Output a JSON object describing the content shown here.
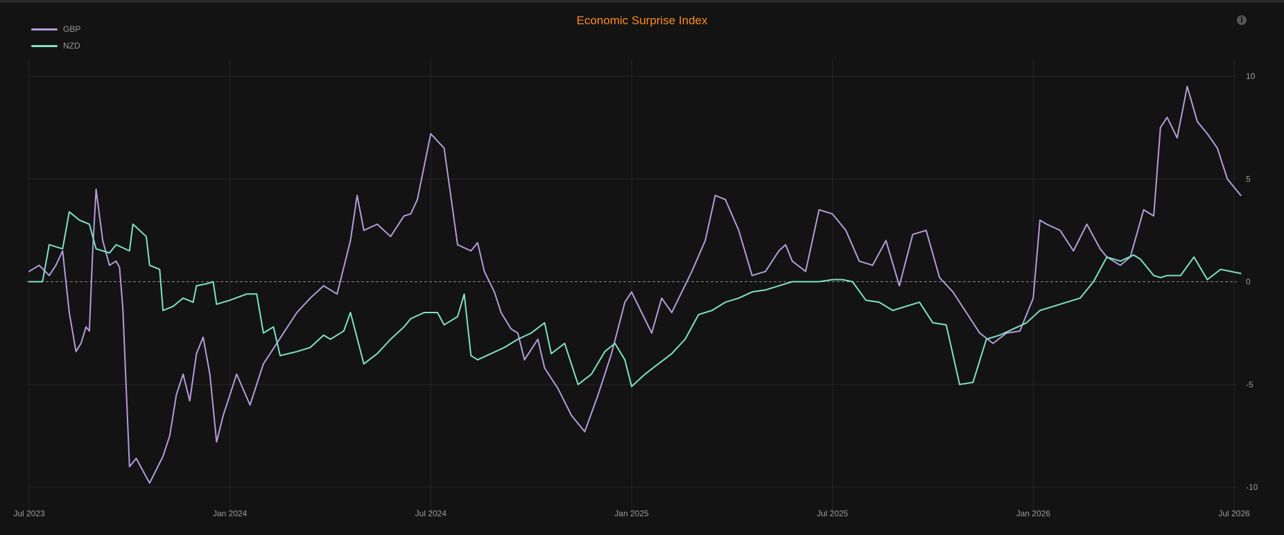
{
  "chart_data": {
    "type": "line",
    "title": "Economic Surprise Index",
    "xlabel": "",
    "ylabel": "",
    "x_ticks": [
      "Jul 2023",
      "Jan 2024",
      "Jul 2024",
      "Jan 2025",
      "Jul 2025",
      "Jan 2026",
      "Jul 2026"
    ],
    "x_tick_months": [
      0,
      6,
      12,
      18,
      24,
      30,
      36
    ],
    "xlim": [
      0,
      36
    ],
    "y_ticks": [
      10,
      5,
      0,
      -5,
      -10
    ],
    "ylim": [
      -10,
      10
    ],
    "y_axis_side": "right",
    "grid": true,
    "zero_line": "dashed",
    "legend_position": "top-left",
    "series": [
      {
        "name": "GBP",
        "color": "#b39ddb",
        "x": [
          0,
          0.3,
          0.6,
          0.8,
          1.0,
          1.2,
          1.4,
          1.55,
          1.7,
          1.8,
          1.9,
          2.0,
          2.2,
          2.4,
          2.6,
          2.7,
          2.8,
          3.0,
          3.1,
          3.2,
          3.4,
          3.6,
          4.0,
          4.2,
          4.4,
          4.6,
          4.8,
          5.0,
          5.2,
          5.4,
          5.6,
          5.8,
          6.0,
          6.2,
          6.6,
          7.0,
          7.2,
          7.6,
          8.0,
          8.4,
          8.8,
          9.2,
          9.6,
          9.8,
          10.0,
          10.4,
          10.8,
          11.2,
          11.4,
          11.6,
          12.0,
          12.4,
          12.8,
          13.2,
          13.4,
          13.6,
          13.9,
          14.1,
          14.4,
          14.6,
          14.8,
          15.2,
          15.4,
          15.8,
          16.2,
          16.6,
          17.0,
          17.4,
          17.8,
          18.0,
          18.3,
          18.6,
          18.9,
          19.2,
          19.5,
          19.8,
          20.2,
          20.5,
          20.8,
          21.2,
          21.6,
          22.0,
          22.4,
          22.6,
          22.8,
          23.2,
          23.6,
          24.0,
          24.4,
          24.8,
          25.2,
          25.6,
          26.0,
          26.4,
          26.8,
          27.2,
          27.6,
          28.0,
          28.4,
          28.8,
          29.2,
          29.6,
          30.0,
          30.2,
          30.4,
          30.8,
          31.2,
          31.6,
          32.0,
          32.2,
          32.6,
          32.9,
          33.3,
          33.6,
          33.8,
          34.0,
          34.3,
          34.6,
          34.9,
          35.2,
          35.5,
          35.8,
          36.2
        ],
        "y": [
          0.5,
          0.8,
          0.3,
          0.8,
          1.5,
          -1.5,
          -3.4,
          -3.0,
          -2.2,
          -2.4,
          1.5,
          4.5,
          2.0,
          0.8,
          1.0,
          0.7,
          -1.3,
          -9.0,
          -8.8,
          -8.6,
          -9.2,
          -9.8,
          -8.5,
          -7.5,
          -5.5,
          -4.5,
          -5.8,
          -3.5,
          -2.7,
          -4.5,
          -7.8,
          -6.5,
          -5.5,
          -4.5,
          -6.0,
          -4.0,
          -3.5,
          -2.5,
          -1.5,
          -0.8,
          -0.2,
          -0.6,
          2.0,
          4.2,
          2.5,
          2.8,
          2.2,
          3.2,
          3.3,
          4.0,
          7.2,
          6.5,
          1.8,
          1.5,
          1.9,
          0.5,
          -0.5,
          -1.5,
          -2.3,
          -2.5,
          -3.8,
          -2.8,
          -4.2,
          -5.2,
          -6.5,
          -7.3,
          -5.5,
          -3.5,
          -1.0,
          -0.5,
          -1.5,
          -2.5,
          -0.8,
          -1.5,
          -0.5,
          0.5,
          2.0,
          4.2,
          4.0,
          2.5,
          0.3,
          0.5,
          1.5,
          1.8,
          1.0,
          0.5,
          3.5,
          3.3,
          2.5,
          1.0,
          0.8,
          2.0,
          -0.2,
          2.3,
          2.5,
          0.2,
          -0.5,
          -1.5,
          -2.5,
          -3.0,
          -2.5,
          -2.4,
          -0.8,
          3.0,
          2.8,
          2.5,
          1.5,
          2.8,
          1.6,
          1.2,
          0.8,
          1.2,
          3.5,
          3.2,
          7.5,
          8.0,
          7.0,
          9.5,
          7.8,
          7.2,
          6.5,
          5.0,
          4.2
        ]
      },
      {
        "name": "NZD",
        "color": "#7fe3c4",
        "x": [
          0,
          0.4,
          0.6,
          1.0,
          1.2,
          1.5,
          1.8,
          2.0,
          2.4,
          2.6,
          3.0,
          3.1,
          3.5,
          3.6,
          3.9,
          4.0,
          4.3,
          4.6,
          4.9,
          5.0,
          5.3,
          5.5,
          5.6,
          5.8,
          6.0,
          6.5,
          6.8,
          7.0,
          7.3,
          7.5,
          8.0,
          8.4,
          8.8,
          9.0,
          9.4,
          9.6,
          10.0,
          10.4,
          10.8,
          11.2,
          11.4,
          11.8,
          12.2,
          12.4,
          12.8,
          13.0,
          13.2,
          13.4,
          13.8,
          14.2,
          14.6,
          15.0,
          15.4,
          15.6,
          16.0,
          16.4,
          16.8,
          17.2,
          17.5,
          17.8,
          18.0,
          18.4,
          18.8,
          19.2,
          19.6,
          20.0,
          20.4,
          20.8,
          21.2,
          21.6,
          22.0,
          22.4,
          22.8,
          23.2,
          23.6,
          24.0,
          24.3,
          24.6,
          25.0,
          25.4,
          25.8,
          26.2,
          26.6,
          27.0,
          27.4,
          27.8,
          28.2,
          28.6,
          29.0,
          29.4,
          29.8,
          30.2,
          30.6,
          31.0,
          31.4,
          31.8,
          32.2,
          32.6,
          33.0,
          33.2,
          33.6,
          33.8,
          34.0,
          34.4,
          34.8,
          35.2,
          35.6,
          36.2
        ],
        "y": [
          0.0,
          0.0,
          1.8,
          1.6,
          3.4,
          3.0,
          2.8,
          1.6,
          1.4,
          1.8,
          1.5,
          2.8,
          2.2,
          0.8,
          0.6,
          -1.4,
          -1.2,
          -0.8,
          -1.0,
          -0.2,
          -0.1,
          0.0,
          -1.1,
          -1.0,
          -0.9,
          -0.6,
          -0.6,
          -2.5,
          -2.2,
          -3.6,
          -3.4,
          -3.2,
          -2.6,
          -2.8,
          -2.4,
          -1.5,
          -4.0,
          -3.5,
          -2.8,
          -2.2,
          -1.8,
          -1.5,
          -1.5,
          -2.1,
          -1.7,
          -0.6,
          -3.6,
          -3.8,
          -3.5,
          -3.2,
          -2.8,
          -2.5,
          -2.0,
          -3.5,
          -3.0,
          -5.0,
          -4.5,
          -3.4,
          -3.0,
          -3.8,
          -5.1,
          -4.5,
          -4.0,
          -3.5,
          -2.8,
          -1.6,
          -1.4,
          -1.0,
          -0.8,
          -0.5,
          -0.4,
          -0.2,
          0.0,
          0.0,
          0.0,
          0.1,
          0.1,
          0.0,
          -0.9,
          -1.0,
          -1.4,
          -1.2,
          -1.0,
          -2.0,
          -2.1,
          -5.0,
          -4.9,
          -2.8,
          -2.6,
          -2.3,
          -2.0,
          -1.4,
          -1.2,
          -1.0,
          -0.8,
          0.0,
          1.2,
          1.0,
          1.3,
          1.1,
          0.3,
          0.2,
          0.3,
          0.3,
          1.2,
          0.1,
          0.6,
          0.4
        ]
      }
    ]
  },
  "ui": {
    "info_icon": "info-icon"
  }
}
